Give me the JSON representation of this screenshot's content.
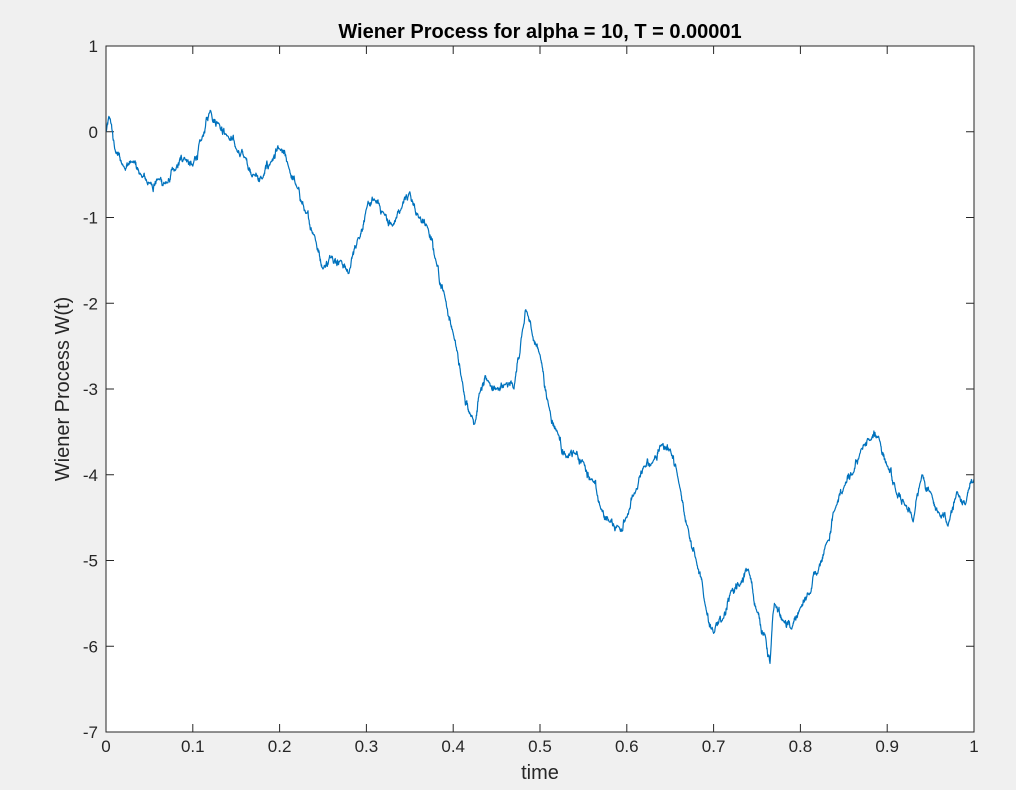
{
  "chart_data": {
    "type": "line",
    "title": "Wiener Process for alpha = 10, T = 0.00001",
    "xlabel": "time",
    "ylabel": "Wiener Process W(t)",
    "xlim": [
      0,
      1
    ],
    "ylim": [
      -7,
      1
    ],
    "xticks": [
      "0",
      "0.1",
      "0.2",
      "0.3",
      "0.4",
      "0.5",
      "0.6",
      "0.7",
      "0.8",
      "0.9",
      "1"
    ],
    "yticks": [
      "1",
      "0",
      "-1",
      "-2",
      "-3",
      "-4",
      "-5",
      "-6",
      "-7"
    ],
    "grid": false,
    "legend": "none",
    "colors": {
      "line": "#0072bd",
      "axes_background": "#ffffff",
      "figure_background": "#f0f0f0",
      "axes_color": "#262626"
    },
    "series": [
      {
        "x": [
          0,
          0.005,
          0.01,
          0.02,
          0.03,
          0.04,
          0.05,
          0.06,
          0.07,
          0.08,
          0.09,
          0.1,
          0.11,
          0.12,
          0.13,
          0.14,
          0.15,
          0.16,
          0.17,
          0.18,
          0.19,
          0.2,
          0.21,
          0.22,
          0.23,
          0.24,
          0.25,
          0.26,
          0.27,
          0.28,
          0.29,
          0.3,
          0.31,
          0.32,
          0.33,
          0.34,
          0.35,
          0.36,
          0.37,
          0.38,
          0.39,
          0.4,
          0.41,
          0.42,
          0.425,
          0.43,
          0.44,
          0.45,
          0.46,
          0.47,
          0.48,
          0.485,
          0.49,
          0.5,
          0.51,
          0.52,
          0.53,
          0.54,
          0.55,
          0.56,
          0.57,
          0.58,
          0.59,
          0.6,
          0.61,
          0.62,
          0.63,
          0.64,
          0.65,
          0.66,
          0.67,
          0.68,
          0.69,
          0.7,
          0.71,
          0.72,
          0.73,
          0.74,
          0.75,
          0.76,
          0.765,
          0.77,
          0.78,
          0.79,
          0.8,
          0.81,
          0.82,
          0.83,
          0.84,
          0.85,
          0.86,
          0.87,
          0.88,
          0.89,
          0.9,
          0.91,
          0.92,
          0.93,
          0.94,
          0.95,
          0.96,
          0.97,
          0.98,
          0.99,
          1.0
        ],
        "y": [
          0,
          0.15,
          -0.2,
          -0.4,
          -0.35,
          -0.5,
          -0.6,
          -0.55,
          -0.6,
          -0.45,
          -0.3,
          -0.4,
          -0.1,
          0.25,
          0.1,
          -0.05,
          -0.2,
          -0.3,
          -0.5,
          -0.55,
          -0.35,
          -0.2,
          -0.4,
          -0.65,
          -0.95,
          -1.2,
          -1.6,
          -1.45,
          -1.5,
          -1.65,
          -1.25,
          -0.9,
          -0.8,
          -0.95,
          -1.1,
          -0.9,
          -0.7,
          -1.0,
          -1.1,
          -1.5,
          -1.9,
          -2.35,
          -2.9,
          -3.3,
          -3.4,
          -3.05,
          -2.9,
          -3.0,
          -2.95,
          -3.0,
          -2.3,
          -2.1,
          -2.3,
          -2.6,
          -3.2,
          -3.5,
          -3.8,
          -3.75,
          -3.85,
          -4.05,
          -4.4,
          -4.55,
          -4.6,
          -4.5,
          -4.2,
          -3.9,
          -3.85,
          -3.65,
          -3.7,
          -4.1,
          -4.6,
          -5.0,
          -5.5,
          -5.85,
          -5.7,
          -5.35,
          -5.3,
          -5.1,
          -5.6,
          -5.9,
          -6.2,
          -5.5,
          -5.7,
          -5.8,
          -5.55,
          -5.4,
          -5.15,
          -4.8,
          -4.4,
          -4.15,
          -4.0,
          -3.7,
          -3.6,
          -3.55,
          -3.9,
          -4.2,
          -4.35,
          -4.55,
          -4.0,
          -4.2,
          -4.45,
          -4.6,
          -4.2,
          -4.35,
          -4.05
        ]
      }
    ]
  }
}
